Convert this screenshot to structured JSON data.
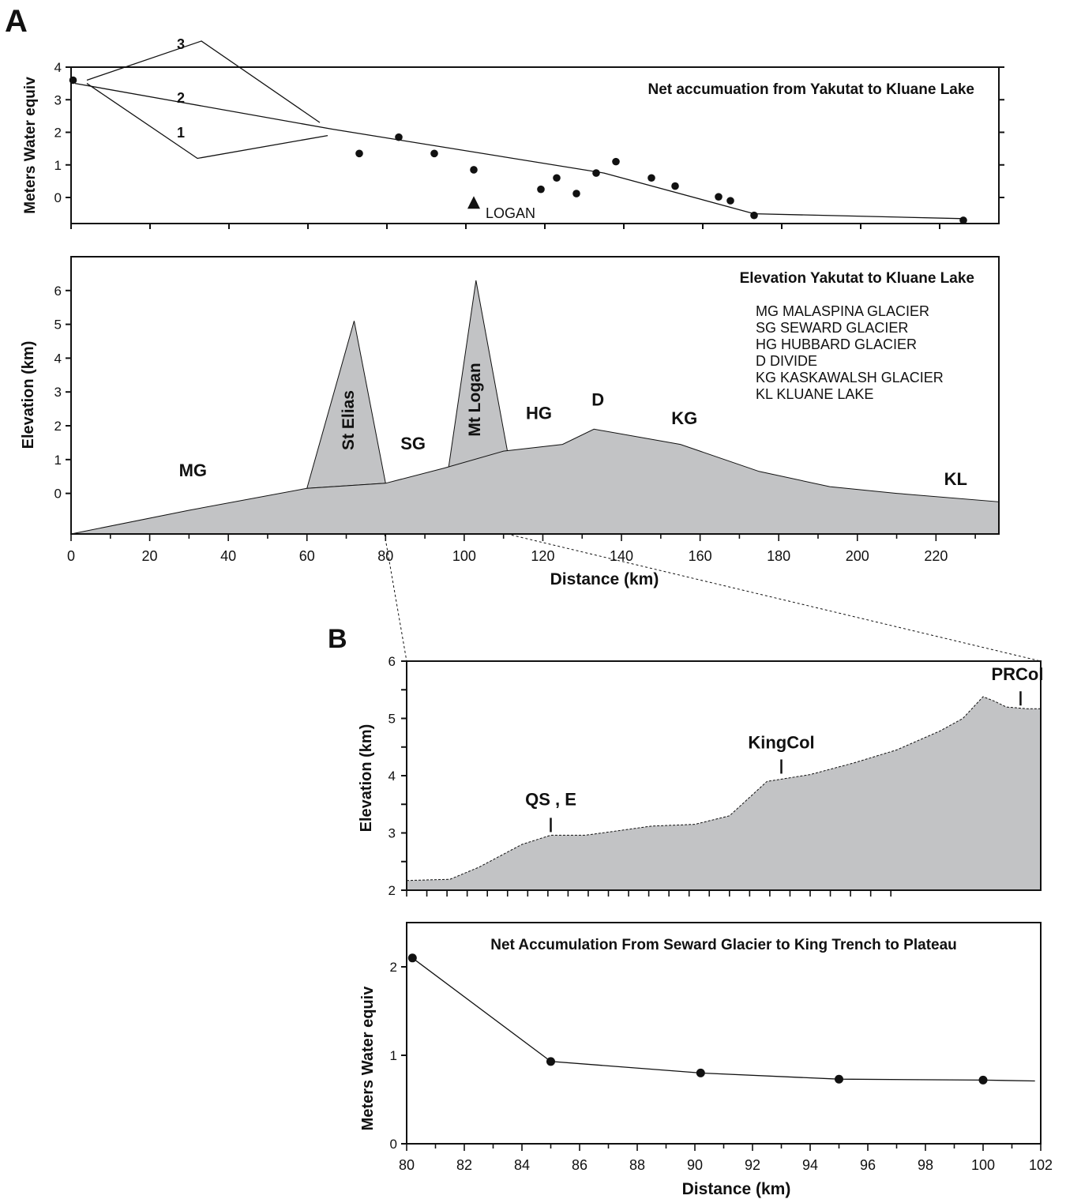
{
  "panel_labels": {
    "a": "A",
    "b": "B"
  },
  "colors": {
    "fill": "#c2c3c5",
    "ink": "#111111"
  },
  "chart_data": [
    {
      "id": "accum_yakutat",
      "type": "scatter",
      "title": "Net accumuation from Yakutat to Kluane Lake",
      "xlabel": "",
      "ylabel": "Meters  Water equiv",
      "xlim": [
        0,
        235
      ],
      "ylim": [
        -0.8,
        4
      ],
      "yticks": [
        0,
        1,
        2,
        3,
        4
      ],
      "points": [
        [
          0.5,
          3.6
        ],
        [
          73,
          1.35
        ],
        [
          83,
          1.85
        ],
        [
          92,
          1.35
        ],
        [
          102,
          0.85
        ],
        [
          119,
          0.25
        ],
        [
          123,
          0.6
        ],
        [
          128,
          0.12
        ],
        [
          133,
          0.75
        ],
        [
          138,
          1.1
        ],
        [
          147,
          0.6
        ],
        [
          153,
          0.35
        ],
        [
          164,
          0.02
        ],
        [
          167,
          -0.1
        ],
        [
          173,
          -0.55
        ],
        [
          226,
          -0.7
        ]
      ],
      "trend": [
        [
          1,
          3.5
        ],
        [
          66,
          2.1
        ],
        [
          135,
          0.75
        ],
        [
          173,
          -0.5
        ],
        [
          226,
          -0.65
        ]
      ],
      "branches": [
        {
          "label": "3",
          "line": [
            [
              4,
              3.6
            ],
            [
              33,
              4.8
            ],
            [
              63,
              2.3
            ]
          ]
        },
        {
          "label": "2",
          "line": [
            [
              4,
              3.5
            ],
            [
              32,
              1.2
            ],
            [
              65,
              1.9
            ]
          ]
        },
        {
          "label": "1",
          "line": []
        }
      ],
      "marker": {
        "label": "LOGAN",
        "x": 102,
        "y": -0.15
      }
    },
    {
      "id": "elev_yakutat",
      "type": "area",
      "title": "Elevation Yakutat to Kluane Lake",
      "xlabel": "Distance  (km)",
      "ylabel": "Elevation  (km)",
      "xlim": [
        0,
        236
      ],
      "ylim": [
        -1.2,
        7
      ],
      "xticks": [
        0,
        20,
        40,
        60,
        80,
        100,
        120,
        140,
        160,
        180,
        200,
        220
      ],
      "yticks": [
        0,
        1,
        2,
        3,
        4,
        5,
        6
      ],
      "profile": [
        [
          0,
          -1.2
        ],
        [
          30,
          -0.5
        ],
        [
          60,
          0.15
        ],
        [
          80,
          0.3
        ],
        [
          95,
          0.75
        ],
        [
          110,
          1.25
        ],
        [
          125,
          1.45
        ],
        [
          133,
          1.9
        ],
        [
          155,
          1.45
        ],
        [
          175,
          0.65
        ],
        [
          193,
          0.2
        ],
        [
          210,
          0
        ],
        [
          236,
          -0.25
        ]
      ],
      "peaks": [
        {
          "label": "St Elias",
          "points": [
            [
              60,
              0.15
            ],
            [
              72,
              5.1
            ],
            [
              80,
              0.3
            ]
          ]
        },
        {
          "label": "Mt Logan",
          "points": [
            [
              96,
              0.75
            ],
            [
              103,
              6.3
            ],
            [
              111,
              1.25
            ]
          ]
        }
      ],
      "region_labels": [
        {
          "label": "MG",
          "x": 31,
          "y": 0.5
        },
        {
          "label": "SG",
          "x": 87,
          "y": 1.3
        },
        {
          "label": "HG",
          "x": 119,
          "y": 2.2
        },
        {
          "label": "D",
          "x": 134,
          "y": 2.6
        },
        {
          "label": "KG",
          "x": 156,
          "y": 2.05
        },
        {
          "label": "KL",
          "x": 225,
          "y": 0.25
        }
      ],
      "legend_title": "",
      "legend": [
        "MG MALASPINA GLACIER",
        "SG SEWARD GLACIER",
        "HG HUBBARD GLACIER",
        "D    DIVIDE",
        "KG KASKAWALSH GLACIER",
        "KL  KLUANE LAKE"
      ]
    },
    {
      "id": "elev_seward",
      "type": "area",
      "title": "",
      "xlabel": "",
      "ylabel": "Elevation (km)",
      "xlim": [
        80,
        102
      ],
      "ylim": [
        2,
        6
      ],
      "yticks": [
        2,
        3,
        4,
        5,
        6
      ],
      "profile": [
        [
          80,
          2.17
        ],
        [
          81.5,
          2.19
        ],
        [
          82.5,
          2.4
        ],
        [
          84,
          2.8
        ],
        [
          85,
          2.96
        ],
        [
          86.2,
          2.96
        ],
        [
          87.5,
          3.05
        ],
        [
          88.5,
          3.12
        ],
        [
          90,
          3.15
        ],
        [
          91.2,
          3.3
        ],
        [
          92.5,
          3.9
        ],
        [
          94,
          4.02
        ],
        [
          95.5,
          4.22
        ],
        [
          97,
          4.45
        ],
        [
          98.5,
          4.78
        ],
        [
          99.3,
          5.0
        ],
        [
          100,
          5.38
        ],
        [
          100.4,
          5.3
        ],
        [
          100.8,
          5.2
        ],
        [
          101.5,
          5.17
        ],
        [
          102,
          5.17
        ]
      ],
      "annotations": [
        {
          "label": "QS , E",
          "x": 85,
          "y": 2.96
        },
        {
          "label": "KingCol",
          "x": 93,
          "y": 3.98
        },
        {
          "label": "PRCol",
          "x": 101.3,
          "y": 5.17
        }
      ]
    },
    {
      "id": "accum_seward",
      "type": "line",
      "title": "Net Accumulation From Seward Glacier to King Trench to Plateau",
      "xlabel": "Distance (km)",
      "ylabel": "Meters  Water equiv",
      "xlim": [
        80,
        102
      ],
      "ylim": [
        0,
        2.5
      ],
      "xticks": [
        80,
        82,
        84,
        86,
        88,
        90,
        92,
        94,
        96,
        98,
        100,
        102
      ],
      "yticks": [
        0,
        1,
        2
      ],
      "points": [
        [
          80.2,
          2.1
        ],
        [
          85,
          0.93
        ],
        [
          90.2,
          0.8
        ],
        [
          95,
          0.73
        ],
        [
          100,
          0.72
        ]
      ],
      "line": [
        [
          80.2,
          2.1
        ],
        [
          85,
          0.93
        ],
        [
          90.2,
          0.8
        ],
        [
          95,
          0.73
        ],
        [
          100,
          0.72
        ],
        [
          101.8,
          0.71
        ]
      ]
    }
  ]
}
